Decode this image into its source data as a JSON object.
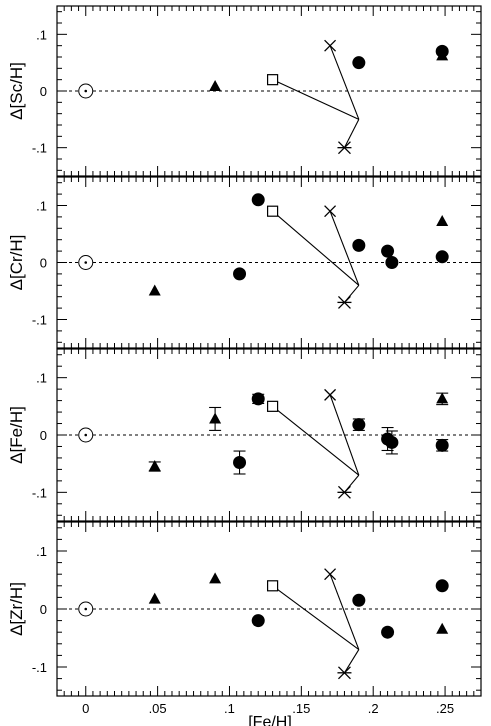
{
  "chart_data": [
    {
      "type": "scatter",
      "ylabel": "Δ[Sc/H]",
      "xlim": [
        -0.02,
        0.275
      ],
      "ylim": [
        -0.15,
        0.15
      ],
      "yticks": [
        ".1",
        "0",
        "-.1"
      ],
      "points": [
        {
          "x": 0.0,
          "y": 0.0,
          "marker": "circle-dot"
        },
        {
          "x": 0.09,
          "y": 0.008,
          "marker": "triangle"
        },
        {
          "x": 0.13,
          "y": 0.02,
          "marker": "square"
        },
        {
          "x": 0.17,
          "y": 0.08,
          "marker": "cross"
        },
        {
          "x": 0.18,
          "y": -0.1,
          "marker": "asterisk"
        },
        {
          "x": 0.19,
          "y": 0.05,
          "marker": "circle"
        },
        {
          "x": 0.248,
          "y": 0.07,
          "marker": "circle"
        },
        {
          "x": 0.248,
          "y": 0.062,
          "marker": "triangle"
        }
      ],
      "lines": [
        [
          [
            0.13,
            0.02
          ],
          [
            0.19,
            -0.05
          ]
        ],
        [
          [
            0.17,
            0.08
          ],
          [
            0.19,
            -0.05
          ]
        ],
        [
          [
            0.18,
            -0.1
          ],
          [
            0.19,
            -0.05
          ]
        ]
      ]
    },
    {
      "type": "scatter",
      "ylabel": "Δ[Cr/H]",
      "xlim": [
        -0.02,
        0.275
      ],
      "ylim": [
        -0.15,
        0.15
      ],
      "yticks": [
        ".1",
        "0",
        "-.1"
      ],
      "points": [
        {
          "x": 0.0,
          "y": 0.0,
          "marker": "circle-dot"
        },
        {
          "x": 0.048,
          "y": -0.05,
          "marker": "triangle"
        },
        {
          "x": 0.107,
          "y": -0.02,
          "marker": "circle"
        },
        {
          "x": 0.12,
          "y": 0.11,
          "marker": "circle"
        },
        {
          "x": 0.13,
          "y": 0.09,
          "marker": "square"
        },
        {
          "x": 0.17,
          "y": 0.09,
          "marker": "cross"
        },
        {
          "x": 0.18,
          "y": -0.07,
          "marker": "asterisk"
        },
        {
          "x": 0.19,
          "y": 0.03,
          "marker": "circle"
        },
        {
          "x": 0.21,
          "y": 0.02,
          "marker": "circle"
        },
        {
          "x": 0.213,
          "y": 0.0,
          "marker": "circle"
        },
        {
          "x": 0.248,
          "y": 0.072,
          "marker": "triangle"
        },
        {
          "x": 0.248,
          "y": 0.01,
          "marker": "circle"
        }
      ],
      "lines": [
        [
          [
            0.13,
            0.09
          ],
          [
            0.19,
            -0.04
          ]
        ],
        [
          [
            0.17,
            0.09
          ],
          [
            0.19,
            -0.04
          ]
        ],
        [
          [
            0.18,
            -0.07
          ],
          [
            0.19,
            -0.04
          ]
        ]
      ]
    },
    {
      "type": "scatter",
      "ylabel": "Δ[Fe/H]",
      "xlim": [
        -0.02,
        0.275
      ],
      "ylim": [
        -0.15,
        0.15
      ],
      "yticks": [
        ".1",
        "0",
        "-.1"
      ],
      "points": [
        {
          "x": 0.0,
          "y": 0.0,
          "marker": "circle-dot"
        },
        {
          "x": 0.048,
          "y": -0.055,
          "marker": "triangle",
          "err": 0.008
        },
        {
          "x": 0.09,
          "y": 0.028,
          "marker": "triangle",
          "err": 0.02
        },
        {
          "x": 0.107,
          "y": -0.048,
          "marker": "circle",
          "err": 0.02
        },
        {
          "x": 0.12,
          "y": 0.063,
          "marker": "circle",
          "err": 0.008
        },
        {
          "x": 0.13,
          "y": 0.05,
          "marker": "square"
        },
        {
          "x": 0.17,
          "y": 0.07,
          "marker": "cross"
        },
        {
          "x": 0.18,
          "y": -0.1,
          "marker": "asterisk"
        },
        {
          "x": 0.19,
          "y": 0.018,
          "marker": "circle",
          "err": 0.01
        },
        {
          "x": 0.21,
          "y": -0.007,
          "marker": "circle",
          "err": 0.02
        },
        {
          "x": 0.213,
          "y": -0.013,
          "marker": "circle",
          "err": 0.02
        },
        {
          "x": 0.248,
          "y": 0.063,
          "marker": "triangle",
          "err": 0.01
        },
        {
          "x": 0.248,
          "y": -0.018,
          "marker": "circle",
          "err": 0.01
        }
      ],
      "lines": [
        [
          [
            0.13,
            0.05
          ],
          [
            0.19,
            -0.07
          ]
        ],
        [
          [
            0.17,
            0.07
          ],
          [
            0.19,
            -0.07
          ]
        ],
        [
          [
            0.18,
            -0.1
          ],
          [
            0.19,
            -0.07
          ]
        ]
      ]
    },
    {
      "type": "scatter",
      "ylabel": "Δ[Zr/H]",
      "xlabel": "[Fe/H]",
      "xlim": [
        -0.02,
        0.275
      ],
      "ylim": [
        -0.15,
        0.15
      ],
      "yticks": [
        ".1",
        "0",
        "-.1"
      ],
      "xticks": [
        "0",
        ".05",
        ".1",
        ".15",
        ".2",
        ".25"
      ],
      "points": [
        {
          "x": 0.0,
          "y": 0.0,
          "marker": "circle-dot"
        },
        {
          "x": 0.048,
          "y": 0.017,
          "marker": "triangle"
        },
        {
          "x": 0.09,
          "y": 0.052,
          "marker": "triangle"
        },
        {
          "x": 0.12,
          "y": -0.02,
          "marker": "circle"
        },
        {
          "x": 0.13,
          "y": 0.04,
          "marker": "square"
        },
        {
          "x": 0.17,
          "y": 0.06,
          "marker": "cross"
        },
        {
          "x": 0.18,
          "y": -0.11,
          "marker": "asterisk"
        },
        {
          "x": 0.19,
          "y": 0.015,
          "marker": "circle"
        },
        {
          "x": 0.21,
          "y": -0.04,
          "marker": "circle"
        },
        {
          "x": 0.248,
          "y": 0.04,
          "marker": "circle"
        },
        {
          "x": 0.248,
          "y": -0.035,
          "marker": "triangle"
        }
      ],
      "lines": [
        [
          [
            0.13,
            0.04
          ],
          [
            0.19,
            -0.07
          ]
        ],
        [
          [
            0.17,
            0.06
          ],
          [
            0.19,
            -0.07
          ]
        ],
        [
          [
            0.18,
            -0.11
          ],
          [
            0.19,
            -0.07
          ]
        ]
      ]
    }
  ]
}
